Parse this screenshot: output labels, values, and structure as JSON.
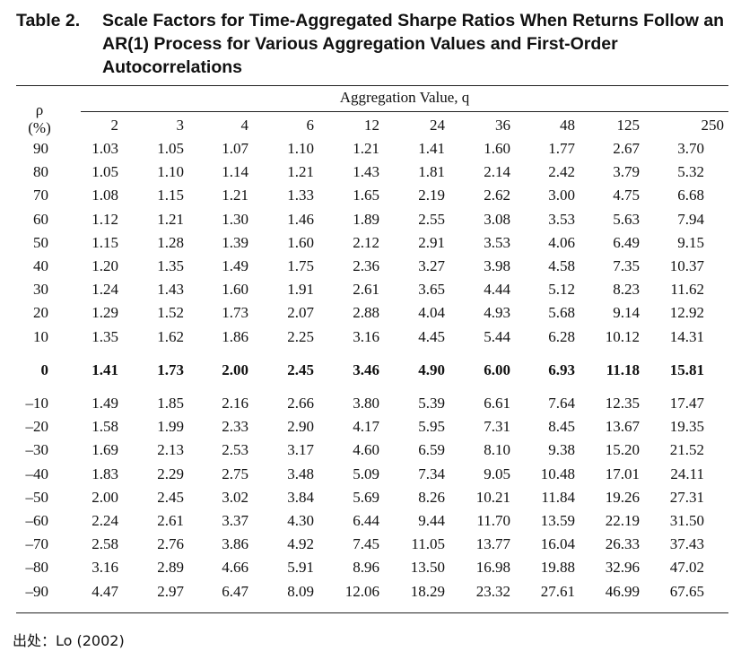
{
  "caption": {
    "label": "Table 2.",
    "text": "Scale Factors for Time-Aggregated Sharpe Ratios When Returns Follow an AR(1) Process for Various Aggregation Values and First-Order Autocorrelations"
  },
  "table": {
    "span_header": "Aggregation Value, q",
    "rho_header_symbol": "ρ",
    "rho_header_unit": "(%)",
    "columns": [
      "2",
      "3",
      "4",
      "6",
      "12",
      "24",
      "36",
      "48",
      "125",
      "250"
    ],
    "rows_upper": [
      {
        "rho": "90",
        "values": [
          "1.03",
          "1.05",
          "1.07",
          "1.10",
          "1.21",
          "1.41",
          "1.60",
          "1.77",
          "2.67",
          "3.70"
        ]
      },
      {
        "rho": "80",
        "values": [
          "1.05",
          "1.10",
          "1.14",
          "1.21",
          "1.43",
          "1.81",
          "2.14",
          "2.42",
          "3.79",
          "5.32"
        ]
      },
      {
        "rho": "70",
        "values": [
          "1.08",
          "1.15",
          "1.21",
          "1.33",
          "1.65",
          "2.19",
          "2.62",
          "3.00",
          "4.75",
          "6.68"
        ]
      },
      {
        "rho": "60",
        "values": [
          "1.12",
          "1.21",
          "1.30",
          "1.46",
          "1.89",
          "2.55",
          "3.08",
          "3.53",
          "5.63",
          "7.94"
        ]
      },
      {
        "rho": "50",
        "values": [
          "1.15",
          "1.28",
          "1.39",
          "1.60",
          "2.12",
          "2.91",
          "3.53",
          "4.06",
          "6.49",
          "9.15"
        ]
      },
      {
        "rho": "40",
        "values": [
          "1.20",
          "1.35",
          "1.49",
          "1.75",
          "2.36",
          "3.27",
          "3.98",
          "4.58",
          "7.35",
          "10.37"
        ]
      },
      {
        "rho": "30",
        "values": [
          "1.24",
          "1.43",
          "1.60",
          "1.91",
          "2.61",
          "3.65",
          "4.44",
          "5.12",
          "8.23",
          "11.62"
        ]
      },
      {
        "rho": "20",
        "values": [
          "1.29",
          "1.52",
          "1.73",
          "2.07",
          "2.88",
          "4.04",
          "4.93",
          "5.68",
          "9.14",
          "12.92"
        ]
      },
      {
        "rho": "10",
        "values": [
          "1.35",
          "1.62",
          "1.86",
          "2.25",
          "3.16",
          "4.45",
          "5.44",
          "6.28",
          "10.12",
          "14.31"
        ]
      }
    ],
    "row_zero": {
      "rho": "0",
      "values": [
        "1.41",
        "1.73",
        "2.00",
        "2.45",
        "3.46",
        "4.90",
        "6.00",
        "6.93",
        "11.18",
        "15.81"
      ]
    },
    "rows_lower": [
      {
        "rho": "–10",
        "values": [
          "1.49",
          "1.85",
          "2.16",
          "2.66",
          "3.80",
          "5.39",
          "6.61",
          "7.64",
          "12.35",
          "17.47"
        ]
      },
      {
        "rho": "–20",
        "values": [
          "1.58",
          "1.99",
          "2.33",
          "2.90",
          "4.17",
          "5.95",
          "7.31",
          "8.45",
          "13.67",
          "19.35"
        ]
      },
      {
        "rho": "–30",
        "values": [
          "1.69",
          "2.13",
          "2.53",
          "3.17",
          "4.60",
          "6.59",
          "8.10",
          "9.38",
          "15.20",
          "21.52"
        ]
      },
      {
        "rho": "–40",
        "values": [
          "1.83",
          "2.29",
          "2.75",
          "3.48",
          "5.09",
          "7.34",
          "9.05",
          "10.48",
          "17.01",
          "24.11"
        ]
      },
      {
        "rho": "–50",
        "values": [
          "2.00",
          "2.45",
          "3.02",
          "3.84",
          "5.69",
          "8.26",
          "10.21",
          "11.84",
          "19.26",
          "27.31"
        ]
      },
      {
        "rho": "–60",
        "values": [
          "2.24",
          "2.61",
          "3.37",
          "4.30",
          "6.44",
          "9.44",
          "11.70",
          "13.59",
          "22.19",
          "31.50"
        ]
      },
      {
        "rho": "–70",
        "values": [
          "2.58",
          "2.76",
          "3.86",
          "4.92",
          "7.45",
          "11.05",
          "13.77",
          "16.04",
          "26.33",
          "37.43"
        ]
      },
      {
        "rho": "–80",
        "values": [
          "3.16",
          "2.89",
          "4.66",
          "5.91",
          "8.96",
          "13.50",
          "16.98",
          "19.88",
          "32.96",
          "47.02"
        ]
      },
      {
        "rho": "–90",
        "values": [
          "4.47",
          "2.97",
          "6.47",
          "8.09",
          "12.06",
          "18.29",
          "23.32",
          "27.61",
          "46.99",
          "67.65"
        ]
      }
    ]
  },
  "source": "出处：Lo (2002)"
}
